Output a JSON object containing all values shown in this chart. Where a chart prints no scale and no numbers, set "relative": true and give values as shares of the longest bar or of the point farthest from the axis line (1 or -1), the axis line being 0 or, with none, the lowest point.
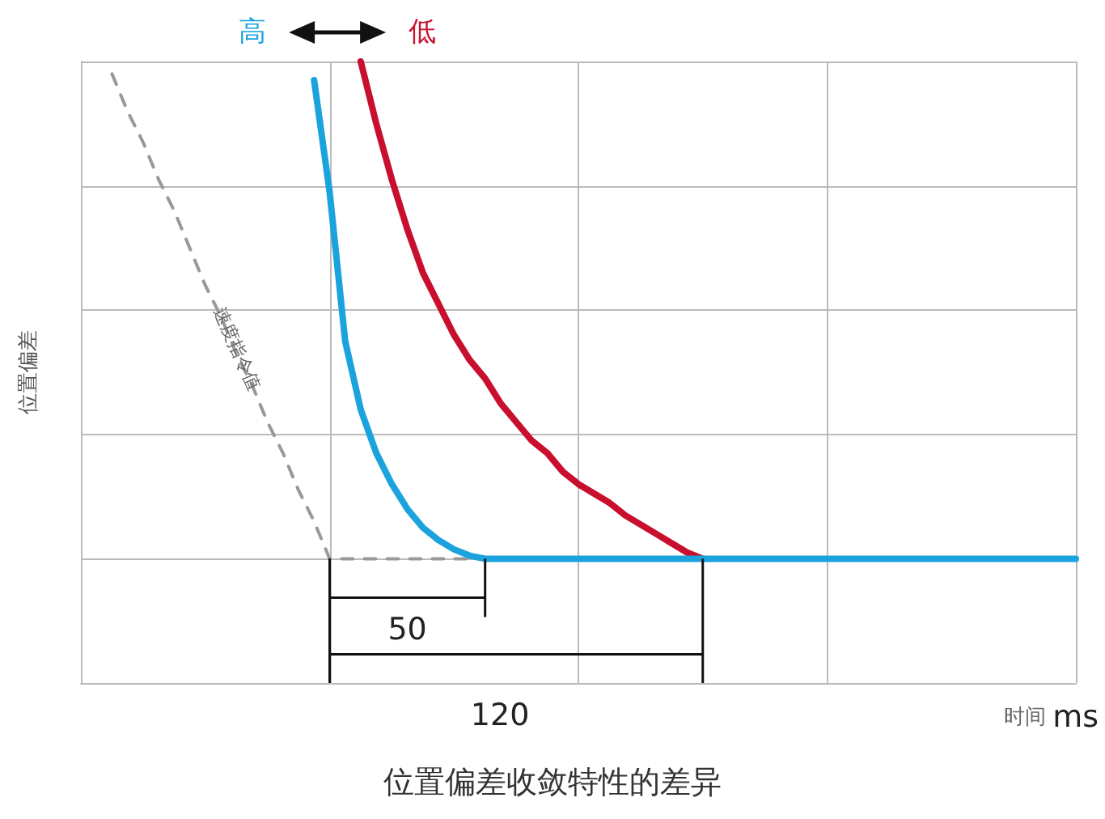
{
  "chart_data": {
    "type": "line",
    "title": "位置偏差收敛特性的差异",
    "xlabel": "时间 ms",
    "ylabel": "位置偏差",
    "relative": true,
    "grid": true,
    "marker": "none",
    "categories": [
      null,
      null,
      null,
      null,
      null,
      null,
      null,
      null,
      null,
      null,
      null,
      null,
      null,
      null,
      null,
      null,
      null,
      null,
      null,
      null,
      null,
      null,
      null,
      null,
      null,
      null,
      null,
      null,
      null,
      null,
      null,
      null,
      null,
      null,
      null,
      null,
      null,
      null,
      null,
      null,
      null,
      null,
      null,
      null,
      null,
      null,
      null,
      null,
      null,
      null,
      null,
      null,
      null,
      null,
      null,
      null,
      null,
      null,
      null,
      null,
      null,
      null,
      null,
      null,
      null
    ],
    "annotations": [
      "高",
      "低",
      "速度指令值",
      "50",
      "120"
    ],
    "series": [
      {
        "color": "#1aa3dc",
        "line_style": "solid",
        "values": [
          null,
          null,
          null,
          null,
          null,
          null,
          null,
          null,
          null,
          null,
          null,
          null,
          null,
          null,
          null,
          0.97,
          0.79,
          0.55,
          0.44,
          0.37,
          0.32,
          0.28,
          0.25,
          0.23,
          0.215,
          0.205,
          0.2,
          0.2,
          0.2,
          0.2,
          0.2,
          0.2,
          0.2,
          0.2,
          0.2,
          0.2,
          0.2,
          0.2,
          0.2,
          0.2,
          0.2,
          0.2,
          0.2,
          0.2,
          0.2,
          0.2,
          0.2,
          0.2,
          0.2,
          0.2,
          0.2,
          0.2,
          0.2,
          0.2,
          0.2,
          0.2,
          0.2,
          0.2,
          0.2,
          0.2,
          0.2,
          0.2,
          0.2,
          0.2,
          0.2
        ]
      },
      {
        "color": "#c8102e",
        "line_style": "solid",
        "values": [
          null,
          null,
          null,
          null,
          null,
          null,
          null,
          null,
          null,
          null,
          null,
          null,
          null,
          null,
          null,
          null,
          null,
          null,
          1.0,
          0.9,
          0.81,
          0.73,
          0.66,
          0.61,
          0.56,
          0.52,
          0.49,
          0.45,
          0.42,
          0.39,
          0.37,
          0.34,
          0.32,
          0.305,
          0.29,
          0.27,
          0.255,
          0.24,
          0.225,
          0.21,
          0.2,
          null,
          null,
          null,
          null,
          null,
          null,
          null,
          null,
          null,
          null,
          null,
          null,
          null,
          null,
          null,
          null,
          null,
          null,
          null,
          null,
          null,
          null,
          null,
          null
        ]
      },
      {
        "color": "#999999",
        "line_style": "dashed",
        "values": [
          null,
          null,
          0.98,
          0.92,
          0.87,
          0.81,
          0.76,
          0.7,
          0.64,
          0.59,
          0.53,
          0.48,
          0.42,
          0.37,
          0.31,
          0.26,
          0.2,
          0.2,
          0.2,
          0.2,
          0.2,
          0.2,
          0.2,
          0.2,
          0.2,
          0.2,
          0.2,
          null,
          null,
          null,
          null,
          null,
          null,
          null,
          null,
          null,
          null,
          null,
          null,
          null,
          null,
          null,
          null,
          null,
          null,
          null,
          null,
          null,
          null,
          null,
          null,
          null,
          null,
          null,
          null,
          null,
          null,
          null,
          null,
          null,
          null,
          null,
          null,
          null,
          null
        ]
      }
    ]
  }
}
